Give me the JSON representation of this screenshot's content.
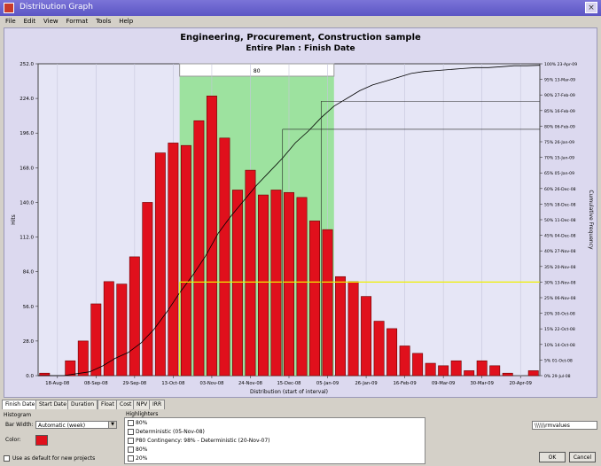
{
  "window": {
    "title": "Distribution Graph",
    "close_glyph": "×",
    "menu": [
      "File",
      "Edit",
      "View",
      "Format",
      "Tools",
      "Help"
    ]
  },
  "chart_data": {
    "type": "bar",
    "title": "Engineering, Procurement, Construction sample",
    "subtitle": "Entire Plan : Finish Date",
    "xlabel": "Distribution (start of interval)",
    "ylabel": "Hits",
    "y2label": "Cumulative Frequency",
    "x_tick_labels": [
      "18-Aug-08",
      "08-Sep-08",
      "29-Sep-08",
      "13-Oct-08",
      "03-Nov-08",
      "24-Nov-08",
      "15-Dec-08",
      "05-Jan-09",
      "26-Jan-09",
      "16-Feb-09",
      "09-Mar-09",
      "30-Mar-09",
      "20-Apr-09"
    ],
    "y_tick_labels": [
      "0.0",
      "28.0",
      "56.0",
      "84.0",
      "112.0",
      "140.0",
      "168.0",
      "196.0",
      "224.0",
      "252.0"
    ],
    "y_range": [
      0,
      252
    ],
    "values": [
      2,
      0,
      12,
      28,
      58,
      76,
      74,
      96,
      140,
      180,
      188,
      186,
      206,
      226,
      192,
      150,
      166,
      146,
      150,
      148,
      144,
      125,
      118,
      80,
      76,
      64,
      44,
      38,
      24,
      18,
      10,
      8,
      12,
      4,
      12,
      8,
      2,
      0,
      4
    ],
    "cumulative_line": [
      0,
      0,
      1,
      2,
      5,
      9,
      12,
      17,
      24,
      33,
      43,
      52,
      62,
      74,
      83,
      91,
      99,
      106,
      113,
      121,
      127,
      134,
      140,
      144,
      148,
      151,
      153,
      155,
      157,
      158,
      158.5,
      159,
      159.5,
      160,
      160,
      160.5,
      161,
      161,
      161.2
    ],
    "cumulative_max": 162,
    "right_tick_labels": [
      "0%  29-Jul-08",
      "5%  01-Oct-08",
      "10%  14-Oct-08",
      "15%  22-Oct-08",
      "20%  30-Oct-08",
      "25%  06-Nov-08",
      "30%  13-Nov-08",
      "35%  20-Nov-08",
      "40%  27-Nov-08",
      "45%  04-Dec-08",
      "50%  11-Dec-08",
      "55%  18-Dec-08",
      "60%  26-Dec-08",
      "65%  05-Jan-09",
      "70%  15-Jan-09",
      "75%  26-Jan-09",
      "80%  06-Feb-09",
      "85%  16-Feb-09",
      "90%  27-Feb-09",
      "95%  13-Mar-09",
      "100%  23-Apr-09"
    ],
    "highlight_label": "80",
    "highlight_start_index": 11,
    "highlight_end_index": 22,
    "deterministic_index": 11,
    "deterministic_pct": 30,
    "p70_index": 19,
    "p70_pct": 79,
    "p80_index": 22,
    "p80_pct": 88,
    "colors": {
      "bar": "#e0101c",
      "bar_edge": "#6a0000",
      "highlight": "#8fe08f",
      "plot_bg": "#e6e6f6",
      "line": "#000000",
      "det_line": "#f0f000"
    }
  },
  "tabs": [
    "Finish Date",
    "Start Date",
    "Duration",
    "Float",
    "Cost",
    "NPV",
    "IRR"
  ],
  "active_tab": 0,
  "panel": {
    "histogram_label": "Histogram",
    "bar_width_label": "Bar Width:",
    "bar_width_value": "Automatic (week)",
    "combo_arrow": "▼",
    "color_label": "Color:",
    "default_label": "Use as default for new projects",
    "highlighters_label": "Highlighters",
    "highlighters": [
      "80%",
      "Deterministic (05-Nov-08)",
      "P80 Contingency: 98% - Deterministic (20-Nov-07)",
      "80%",
      "20%"
    ],
    "right_field_value": "\\\\\\\\\\\\rmvalues",
    "ok_label": "OK",
    "cancel_label": "Cancel"
  }
}
